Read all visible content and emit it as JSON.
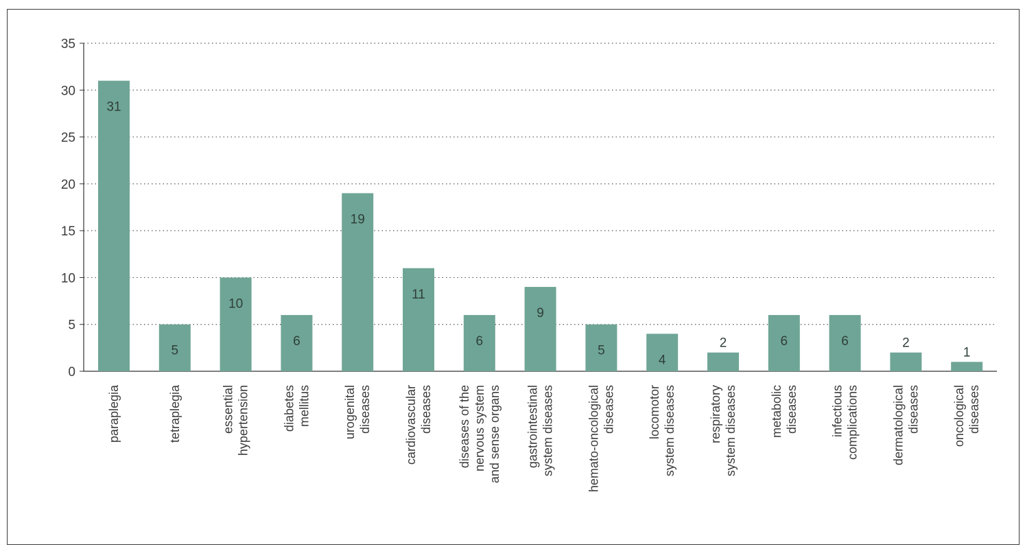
{
  "chart_data": {
    "type": "bar",
    "categories": [
      [
        "paraplegia"
      ],
      [
        "tetraplegia"
      ],
      [
        "essential",
        "hypertension"
      ],
      [
        "diabetes",
        "mellitus"
      ],
      [
        "urogenital",
        "diseases"
      ],
      [
        "cardiovascular",
        "diseases"
      ],
      [
        "diseases of the",
        "nervous system",
        "and sense organs"
      ],
      [
        "gastrointestinal",
        "system diseases"
      ],
      [
        "hemato-oncological",
        "diseases"
      ],
      [
        "locomotor",
        "system diseases"
      ],
      [
        "respiratory",
        "system diseases"
      ],
      [
        "metabolic",
        "diseases"
      ],
      [
        "infectious",
        "complications"
      ],
      [
        "dermatological",
        "diseases"
      ],
      [
        "oncological",
        "diseases"
      ]
    ],
    "values": [
      31,
      5,
      10,
      6,
      19,
      11,
      6,
      9,
      5,
      4,
      2,
      6,
      6,
      2,
      1
    ],
    "value_labels": [
      "31",
      "5",
      "10",
      "6",
      "19",
      "11",
      "6",
      "9",
      "5",
      "4",
      "2",
      "6",
      "6",
      "2",
      "1"
    ],
    "yticks": [
      "0",
      "5",
      "10",
      "15",
      "20",
      "25",
      "30",
      "35"
    ],
    "ylim": [
      0,
      35
    ],
    "grid": true,
    "bar_color": "#6fa596",
    "title": "",
    "xlabel": "",
    "ylabel": ""
  }
}
